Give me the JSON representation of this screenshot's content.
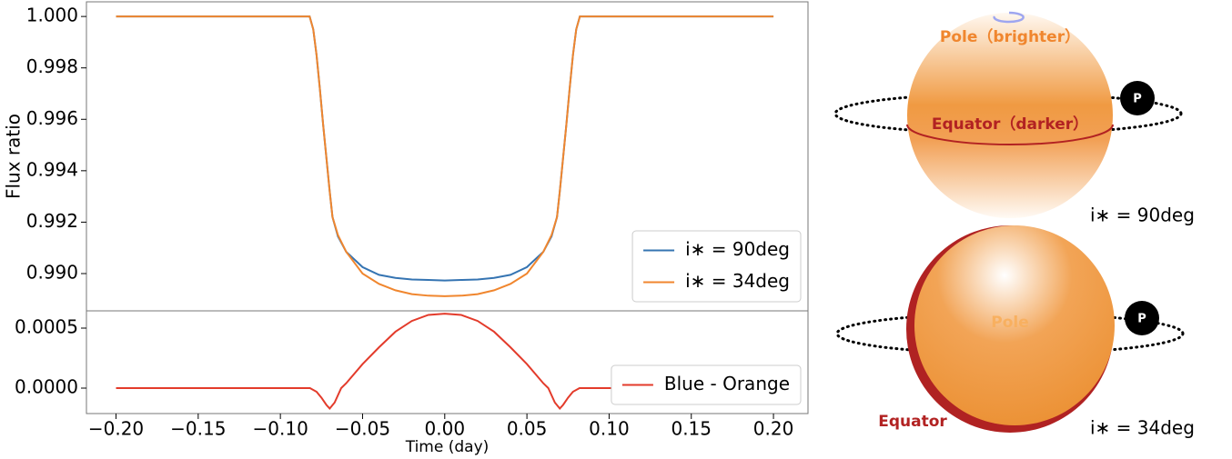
{
  "chart_data": [
    {
      "type": "line",
      "y_label": "Flux ratio",
      "x": [
        -0.2,
        -0.1,
        -0.0822,
        -0.08,
        -0.078,
        -0.076,
        -0.074,
        -0.072,
        -0.07,
        -0.0683,
        -0.065,
        -0.06,
        -0.05,
        -0.04,
        -0.03,
        -0.02,
        -0.01,
        0,
        0.01,
        0.02,
        0.03,
        0.04,
        0.05,
        0.06,
        0.065,
        0.0683,
        0.07,
        0.072,
        0.074,
        0.076,
        0.078,
        0.08,
        0.0822,
        0.1,
        0.2
      ],
      "series": [
        {
          "name": "i∗ = 90deg",
          "color": "#3574b2",
          "values": [
            1,
            1,
            1,
            0.9995,
            0.9985,
            0.9972,
            0.9958,
            0.9945,
            0.9932,
            0.9922,
            0.99145,
            0.99085,
            0.99025,
            0.98995,
            0.98983,
            0.98977,
            0.98975,
            0.98973,
            0.98975,
            0.98977,
            0.98983,
            0.98995,
            0.99025,
            0.99085,
            0.99145,
            0.9922,
            0.9932,
            0.9945,
            0.9958,
            0.9972,
            0.9985,
            0.9995,
            1,
            1,
            1
          ]
        },
        {
          "name": "i∗ = 34deg",
          "color": "#f0862e",
          "values": [
            1,
            1,
            1,
            0.9995,
            0.9985,
            0.9972,
            0.9958,
            0.9945,
            0.9932,
            0.9922,
            0.9915,
            0.99085,
            0.99,
            0.9896,
            0.98935,
            0.9892,
            0.98914,
            0.98912,
            0.98914,
            0.9892,
            0.98935,
            0.9896,
            0.99,
            0.99085,
            0.9915,
            0.9922,
            0.9932,
            0.9945,
            0.9958,
            0.9972,
            0.9985,
            0.9995,
            1,
            1,
            1
          ]
        }
      ],
      "xlim": [
        -0.218,
        0.221
      ],
      "ylim": [
        0.98855,
        1.00057
      ],
      "yticks": [
        {
          "value": 0.99,
          "label": "0.990"
        },
        0.992,
        0.994,
        0.996,
        0.998,
        {
          "value": 1,
          "label": "1.000"
        }
      ],
      "legend": "lower right"
    },
    {
      "type": "line",
      "x_label": "Time (day)",
      "x": [
        -0.2,
        -0.1,
        -0.082,
        -0.078,
        -0.075,
        -0.072,
        -0.07,
        -0.067,
        -0.063,
        -0.06,
        -0.05,
        -0.04,
        -0.03,
        -0.02,
        -0.01,
        0,
        0.01,
        0.02,
        0.03,
        0.04,
        0.05,
        0.06,
        0.063,
        0.067,
        0.07,
        0.072,
        0.075,
        0.078,
        0.082,
        0.1,
        0.2
      ],
      "series": [
        {
          "name": "Blue - Orange",
          "color": "#e33b2b",
          "values": [
            0,
            0,
            0,
            -3e-05,
            -8e-05,
            -0.00014,
            -0.00017,
            -0.00012,
            0,
            4e-05,
            0.0002,
            0.00034,
            0.00047,
            0.00056,
            0.00061,
            0.00062,
            0.00061,
            0.00056,
            0.00047,
            0.00034,
            0.0002,
            4e-05,
            0,
            -0.00012,
            -0.00017,
            -0.00014,
            -8e-05,
            -3e-05,
            0,
            0,
            0
          ]
        }
      ],
      "xlim": [
        -0.218,
        0.221
      ],
      "ylim": [
        -0.000212,
        0.000644
      ],
      "xticks": [
        {
          "value": -0.2,
          "label": "−0.20"
        },
        {
          "value": -0.15,
          "label": "−0.15"
        },
        {
          "value": -0.1,
          "label": "−0.10"
        },
        {
          "value": -0.05,
          "label": "−0.05"
        },
        {
          "value": 0,
          "label": "0.00"
        },
        {
          "value": 0.05,
          "label": "0.05"
        },
        {
          "value": 0.1,
          "label": "0.10"
        },
        {
          "value": 0.15,
          "label": "0.15"
        },
        {
          "value": 0.2,
          "label": "0.20"
        }
      ],
      "yticks": [
        {
          "value": 0,
          "label": "0.0000"
        },
        0.0005
      ],
      "legend": "lower right"
    }
  ],
  "diagram": {
    "top": {
      "pole_label": "Pole（brighter）",
      "equator_label": "Equator（darker）",
      "planet_label": "P",
      "inclination_label": "i∗ = 90deg"
    },
    "bottom": {
      "pole_label": "Pole",
      "equator_label": "Equator",
      "planet_label": "P",
      "inclination_label": "i∗ = 34deg"
    }
  }
}
